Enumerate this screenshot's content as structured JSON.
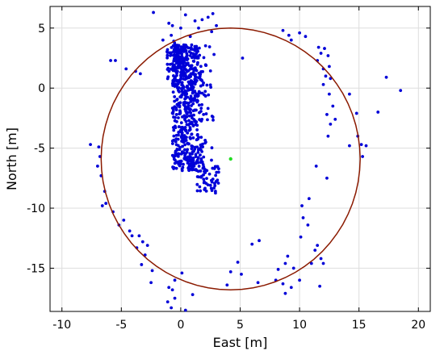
{
  "chart_data": {
    "type": "scatter",
    "title": "",
    "xlabel": "East [m]",
    "ylabel": "North [m]",
    "xlim": [
      -11,
      21
    ],
    "ylim": [
      -18.6,
      6.8
    ],
    "xticks": [
      -10,
      -5,
      0,
      5,
      10,
      15,
      20
    ],
    "yticks": [
      5,
      0,
      -5,
      -10,
      -15
    ],
    "xtick_labels": [
      "-10",
      "-5",
      "0",
      "5",
      "10",
      "15",
      "20"
    ],
    "ytick_labels": [
      "5",
      "0",
      "-5",
      "-10",
      "-15"
    ],
    "grid": true,
    "colors": {
      "points": "#0000d8",
      "circle": "#8b1a00",
      "center": "#22dd22",
      "grid": "#dddddd"
    },
    "circle": {
      "center": [
        4.2,
        -5.9
      ],
      "radius": 10.9
    },
    "center_marker": {
      "x": 4.2,
      "y": -5.9
    },
    "series": [
      {
        "values": [
          {
            "x": 8.6,
            "y": 4.8
          },
          {
            "x": 9.1,
            "y": 4.4
          },
          {
            "x": 9.3,
            "y": 4.0
          },
          {
            "x": 10.0,
            "y": 4.6
          },
          {
            "x": 10.5,
            "y": 4.3
          },
          {
            "x": 11.6,
            "y": 3.4
          },
          {
            "x": 11.8,
            "y": 2.9
          },
          {
            "x": 12.1,
            "y": 3.3
          },
          {
            "x": 12.4,
            "y": 2.7
          },
          {
            "x": 11.5,
            "y": 2.3
          },
          {
            "x": 12.0,
            "y": 1.6
          },
          {
            "x": 12.5,
            "y": 1.8
          },
          {
            "x": 12.2,
            "y": 1.0
          },
          {
            "x": 12.6,
            "y": 0.8
          },
          {
            "x": 12.0,
            "y": 0.3
          },
          {
            "x": 12.5,
            "y": -0.5
          },
          {
            "x": 12.8,
            "y": -1.5
          },
          {
            "x": 12.3,
            "y": -2.2
          },
          {
            "x": 12.6,
            "y": -3.0
          },
          {
            "x": 13.0,
            "y": -2.6
          },
          {
            "x": 12.4,
            "y": -4.0
          },
          {
            "x": 14.2,
            "y": -0.5
          },
          {
            "x": 14.8,
            "y": -2.1
          },
          {
            "x": 14.9,
            "y": -4.0
          },
          {
            "x": 14.2,
            "y": -4.8
          },
          {
            "x": 15.2,
            "y": -4.7
          },
          {
            "x": 15.6,
            "y": -4.8
          },
          {
            "x": 15.3,
            "y": -5.7
          },
          {
            "x": 17.3,
            "y": 0.9
          },
          {
            "x": 18.5,
            "y": -0.2
          },
          {
            "x": 16.6,
            "y": -2.0
          },
          {
            "x": 11.4,
            "y": -6.5
          },
          {
            "x": 12.3,
            "y": -7.5
          },
          {
            "x": 10.8,
            "y": -9.2
          },
          {
            "x": 10.2,
            "y": -9.8
          },
          {
            "x": 10.3,
            "y": -10.8
          },
          {
            "x": 10.7,
            "y": -11.4
          },
          {
            "x": 10.1,
            "y": -12.4
          },
          {
            "x": 11.3,
            "y": -13.5
          },
          {
            "x": 11.8,
            "y": -14.2
          },
          {
            "x": 12.0,
            "y": -14.6
          },
          {
            "x": 11.0,
            "y": -14.6
          },
          {
            "x": 9.0,
            "y": -14.0
          },
          {
            "x": 8.8,
            "y": -14.6
          },
          {
            "x": 8.2,
            "y": -15.1
          },
          {
            "x": 9.5,
            "y": -15.0
          },
          {
            "x": 8.0,
            "y": -16.0
          },
          {
            "x": 8.6,
            "y": -16.3
          },
          {
            "x": 9.3,
            "y": -16.6
          },
          {
            "x": 10.0,
            "y": -16.0
          },
          {
            "x": 8.8,
            "y": -17.1
          },
          {
            "x": 11.7,
            "y": -16.5
          },
          {
            "x": 6.6,
            "y": -12.7
          },
          {
            "x": 6.0,
            "y": -13.0
          },
          {
            "x": 5.1,
            "y": -15.5
          },
          {
            "x": 4.8,
            "y": -14.5
          },
          {
            "x": 6.5,
            "y": -16.2
          },
          {
            "x": -2.3,
            "y": 6.3
          },
          {
            "x": -1.0,
            "y": 5.4
          },
          {
            "x": -0.7,
            "y": 5.2
          },
          {
            "x": -1.5,
            "y": 4.0
          },
          {
            "x": -0.8,
            "y": 4.4
          },
          {
            "x": 0.0,
            "y": 5.0
          },
          {
            "x": 1.2,
            "y": 5.6
          },
          {
            "x": 1.8,
            "y": 5.7
          },
          {
            "x": 2.3,
            "y": 5.9
          },
          {
            "x": 2.7,
            "y": 6.2
          },
          {
            "x": 3.0,
            "y": 5.2
          },
          {
            "x": 2.6,
            "y": 4.7
          },
          {
            "x": 0.8,
            "y": 4.3
          },
          {
            "x": 0.4,
            "y": 6.1
          },
          {
            "x": 1.5,
            "y": 5.0
          },
          {
            "x": 5.2,
            "y": 2.5
          },
          {
            "x": 2.8,
            "y": 2.8
          },
          {
            "x": 2.1,
            "y": 1.9
          },
          {
            "x": -5.9,
            "y": 2.3
          },
          {
            "x": -5.5,
            "y": 2.3
          },
          {
            "x": -4.6,
            "y": 1.6
          },
          {
            "x": -3.8,
            "y": 1.4
          },
          {
            "x": -3.4,
            "y": 1.2
          },
          {
            "x": -7.6,
            "y": -4.7
          },
          {
            "x": -6.9,
            "y": -4.9
          },
          {
            "x": -6.8,
            "y": -5.7
          },
          {
            "x": -7.0,
            "y": -6.5
          },
          {
            "x": -6.7,
            "y": -7.3
          },
          {
            "x": -6.4,
            "y": -8.6
          },
          {
            "x": -6.3,
            "y": -9.6
          },
          {
            "x": -6.6,
            "y": -9.8
          },
          {
            "x": -5.7,
            "y": -10.3
          },
          {
            "x": -5.2,
            "y": -11.4
          },
          {
            "x": -4.8,
            "y": -11.0
          },
          {
            "x": -4.3,
            "y": -11.9
          },
          {
            "x": -4.1,
            "y": -12.3
          },
          {
            "x": -3.5,
            "y": -12.3
          },
          {
            "x": -3.2,
            "y": -12.8
          },
          {
            "x": -2.8,
            "y": -13.1
          },
          {
            "x": -3.7,
            "y": -13.3
          },
          {
            "x": -3.0,
            "y": -13.9
          },
          {
            "x": -3.3,
            "y": -14.7
          },
          {
            "x": -2.4,
            "y": -15.2
          },
          {
            "x": -2.5,
            "y": -16.2
          },
          {
            "x": -0.5,
            "y": -16.0
          },
          {
            "x": 0.1,
            "y": -15.4
          },
          {
            "x": -0.7,
            "y": -16.8
          },
          {
            "x": -1.1,
            "y": -17.8
          },
          {
            "x": -0.5,
            "y": -17.5
          },
          {
            "x": -0.8,
            "y": -18.3
          },
          {
            "x": 0.4,
            "y": -18.5
          },
          {
            "x": 1.0,
            "y": -17.2
          },
          {
            "x": -1.0,
            "y": -16.6
          },
          {
            "x": 4.2,
            "y": -15.3
          },
          {
            "x": 3.9,
            "y": -16.4
          },
          {
            "x": 11.5,
            "y": -13.1
          }
        ]
      }
    ]
  }
}
